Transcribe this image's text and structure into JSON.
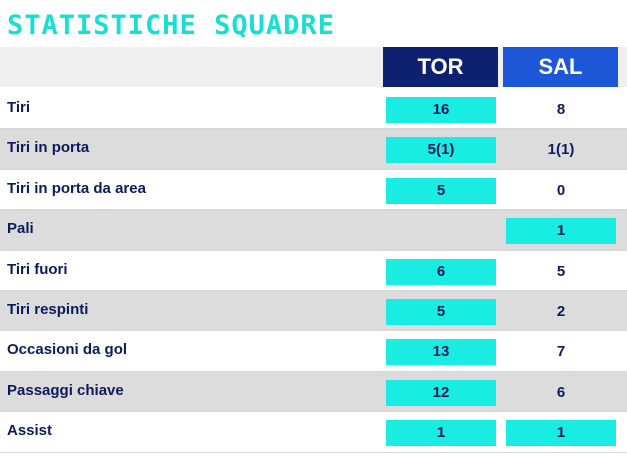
{
  "title": "STATISTICHE SQUADRE",
  "teams": {
    "home": "TOR",
    "away": "SAL"
  },
  "colors": {
    "title": "#16e0d3",
    "home_header": "#0e2170",
    "away_header": "#1d57d8",
    "highlight": "#19ece1",
    "text": "#0e1a5c"
  },
  "stats": [
    {
      "label": "Tiri",
      "home": "16",
      "away": "8",
      "leader": "home"
    },
    {
      "label": "Tiri in porta",
      "home": "5(1)",
      "away": "1(1)",
      "leader": "home"
    },
    {
      "label": "Tiri in porta da area",
      "home": "5",
      "away": "0",
      "leader": "home"
    },
    {
      "label": "Pali",
      "home": "",
      "away": "1",
      "leader": "away"
    },
    {
      "label": "Tiri fuori",
      "home": "6",
      "away": "5",
      "leader": "home"
    },
    {
      "label": "Tiri respinti",
      "home": "5",
      "away": "2",
      "leader": "home"
    },
    {
      "label": "Occasioni da gol",
      "home": "13",
      "away": "7",
      "leader": "home"
    },
    {
      "label": "Passaggi chiave",
      "home": "12",
      "away": "6",
      "leader": "home"
    },
    {
      "label": "Assist",
      "home": "1",
      "away": "1",
      "leader": "both"
    }
  ]
}
